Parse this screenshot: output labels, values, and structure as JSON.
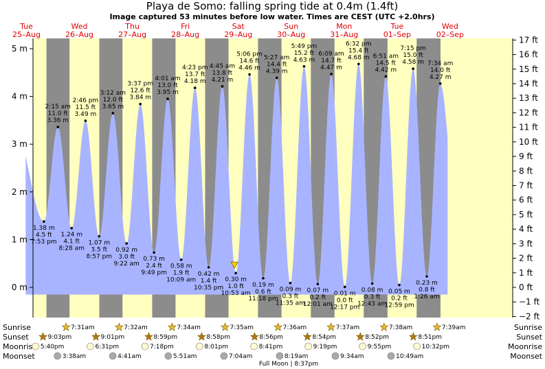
{
  "header": {
    "title": "Playa de Somo: falling  spring tide at 0.4m (1.4ft)",
    "subtitle": "Image captured 53 minutes before low water. Times are CEST (UTC +2.0hrs)"
  },
  "colors": {
    "day": "#ffffc0",
    "night": "#8c8c8c",
    "tide": "#a8b4ff",
    "date_text": "#e00000"
  },
  "chart_data": {
    "type": "area",
    "title": "Playa de Somo: falling  spring tide at 0.4m (1.4ft)",
    "ylabel_left": "m",
    "ylabel_right": "ft",
    "ylim_m": [
      -0.62,
      5.2
    ],
    "yticks_m": [
      "0 m",
      "1 m",
      "2 m",
      "3 m",
      "4 m",
      "5 m"
    ],
    "yticks_ft": [
      "−2 ft",
      "−1 ft",
      "0 ft",
      "1 ft",
      "2 ft",
      "3 ft",
      "4 ft",
      "5 ft",
      "6 ft",
      "7 ft",
      "8 ft",
      "9 ft",
      "10 ft",
      "11 ft",
      "12 ft",
      "13 ft",
      "14 ft",
      "15 ft",
      "16 ft",
      "17 ft"
    ],
    "days": [
      {
        "dow": "Tue",
        "date": "25–Aug"
      },
      {
        "dow": "Wed",
        "date": "26–Aug"
      },
      {
        "dow": "Thu",
        "date": "27–Aug"
      },
      {
        "dow": "Fri",
        "date": "28–Aug"
      },
      {
        "dow": "Sat",
        "date": "29–Aug"
      },
      {
        "dow": "Sun",
        "date": "30–Aug"
      },
      {
        "dow": "Mon",
        "date": "31–Aug"
      },
      {
        "dow": "Tue",
        "date": "01–Sep"
      },
      {
        "dow": "Wed",
        "date": "02–Sep"
      }
    ],
    "events": [
      {
        "type": "low",
        "time": "7:53 pm",
        "m": 1.38,
        "height": "1.38 m",
        "ft": "4.5 ft"
      },
      {
        "type": "high",
        "time": "2:15 am",
        "m": 3.36,
        "height": "3.36 m",
        "ft": "11.0 ft"
      },
      {
        "type": "low",
        "time": "8:28 am",
        "m": 1.24,
        "height": "1.24 m",
        "ft": "4.1 ft"
      },
      {
        "type": "high",
        "time": "2:46 pm",
        "m": 3.49,
        "height": "3.49 m",
        "ft": "11.5 ft"
      },
      {
        "type": "low",
        "time": "8:57 pm",
        "m": 1.07,
        "height": "1.07 m",
        "ft": "3.5 ft"
      },
      {
        "type": "high",
        "time": "3:12 am",
        "m": 3.65,
        "height": "3.65 m",
        "ft": "12.0 ft"
      },
      {
        "type": "low",
        "time": "9:22 am",
        "m": 0.92,
        "height": "0.92 m",
        "ft": "3.0 ft"
      },
      {
        "type": "high",
        "time": "3:37 pm",
        "m": 3.84,
        "height": "3.84 m",
        "ft": "12.6 ft"
      },
      {
        "type": "low",
        "time": "9:49 pm",
        "m": 0.73,
        "height": "0.73 m",
        "ft": "2.4 ft"
      },
      {
        "type": "high",
        "time": "4:01 am",
        "m": 3.95,
        "height": "3.95 m",
        "ft": "13.0 ft"
      },
      {
        "type": "low",
        "time": "10:09 am",
        "m": 0.58,
        "height": "0.58 m",
        "ft": "1.9 ft"
      },
      {
        "type": "high",
        "time": "4:23 pm",
        "m": 4.18,
        "height": "4.18 m",
        "ft": "13.7 ft"
      },
      {
        "type": "low",
        "time": "10:35 pm",
        "m": 0.42,
        "height": "0.42 m",
        "ft": "1.4 ft"
      },
      {
        "type": "high",
        "time": "4:45 am",
        "m": 4.21,
        "height": "4.21 m",
        "ft": "13.8 ft"
      },
      {
        "type": "low",
        "time": "10:53 am",
        "m": 0.3,
        "height": "0.30 m",
        "ft": "1.0 ft"
      },
      {
        "type": "high",
        "time": "5:06 pm",
        "m": 4.46,
        "height": "4.46 m",
        "ft": "14.6 ft"
      },
      {
        "type": "low",
        "time": "11:18 pm",
        "m": 0.19,
        "height": "0.19 m",
        "ft": "0.6 ft"
      },
      {
        "type": "high",
        "time": "5:27 am",
        "m": 4.39,
        "height": "4.39 m",
        "ft": "14.4 ft"
      },
      {
        "type": "low",
        "time": "11:35 am",
        "m": 0.09,
        "height": "0.09 m",
        "ft": "0.3 ft"
      },
      {
        "type": "high",
        "time": "5:49 pm",
        "m": 4.63,
        "height": "4.63 m",
        "ft": "15.2 ft"
      },
      {
        "type": "low",
        "time": "12:01 am",
        "m": 0.07,
        "height": "0.07 m",
        "ft": "0.2 ft"
      },
      {
        "type": "high",
        "time": "6:09 am",
        "m": 4.47,
        "height": "4.47 m",
        "ft": "14.7 ft"
      },
      {
        "type": "low",
        "time": "12:17 pm",
        "m": 0.01,
        "height": "0.01 m",
        "ft": "0.0 ft"
      },
      {
        "type": "high",
        "time": "6:32 pm",
        "m": 4.68,
        "height": "4.68 m",
        "ft": "15.4 ft"
      },
      {
        "type": "low",
        "time": "12:43 am",
        "m": 0.08,
        "height": "0.08 m",
        "ft": "0.3 ft"
      },
      {
        "type": "high",
        "time": "6:51 am",
        "m": 4.42,
        "height": "4.42 m",
        "ft": "14.5 ft"
      },
      {
        "type": "low",
        "time": "12:59 pm",
        "m": 0.05,
        "height": "0.05 m",
        "ft": "0.2 ft"
      },
      {
        "type": "high",
        "time": "7:15 pm",
        "m": 4.58,
        "height": "4.58 m",
        "ft": "15.0 ft"
      },
      {
        "type": "low",
        "time": "1:26 am",
        "m": 0.23,
        "height": "0.23 m",
        "ft": "0.8 ft"
      },
      {
        "type": "high",
        "time": "7:34 am",
        "m": 4.27,
        "height": "4.27 m",
        "ft": "14.0 ft"
      }
    ],
    "current_level_m": 0.4
  },
  "rows": {
    "labels": {
      "sunrise": "Sunrise",
      "sunset": "Sunset",
      "moonrise": "Moonrise",
      "moonset": "Moonset"
    },
    "sunrise": [
      "7:31am",
      "7:32am",
      "7:34am",
      "7:35am",
      "7:36am",
      "7:37am",
      "7:38am",
      "7:39am"
    ],
    "sunset": [
      "9:03pm",
      "9:01pm",
      "8:59pm",
      "8:58pm",
      "8:56pm",
      "8:54pm",
      "8:52pm",
      "8:51pm"
    ],
    "moonrise": [
      "5:40pm",
      "6:31pm",
      "7:18pm",
      "8:01pm",
      "8:41pm",
      "9:19pm",
      "9:55pm",
      "10:32pm"
    ],
    "moonset": [
      "3:38am",
      "4:41am",
      "5:51am",
      "7:04am",
      "8:19am",
      "9:34am",
      "10:49am"
    ]
  },
  "footer": {
    "full_moon": "Full Moon | 8:37pm"
  }
}
